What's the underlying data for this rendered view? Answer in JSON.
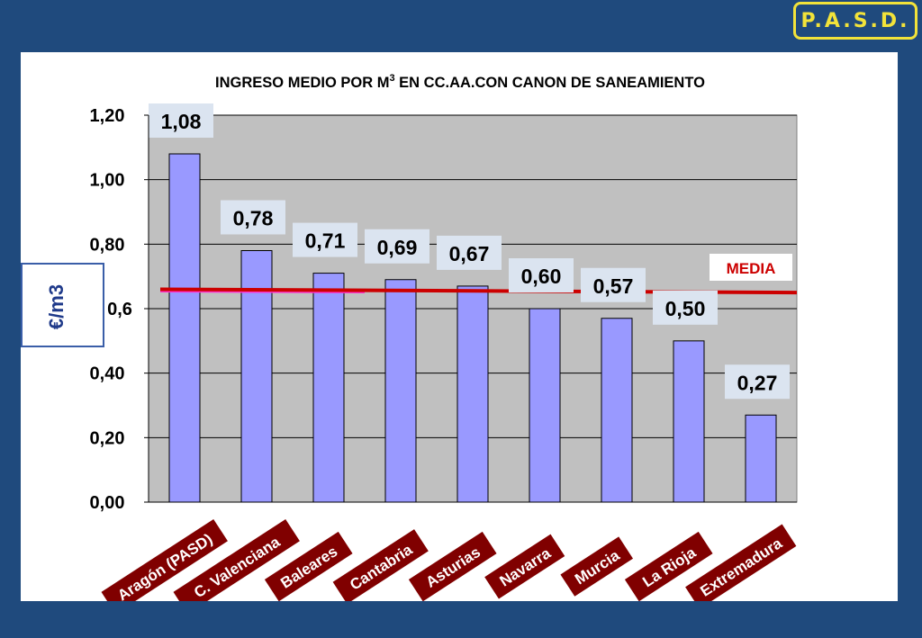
{
  "badge": "P.A.S.D.",
  "chart_data": {
    "type": "bar",
    "title": "INGRESO MEDIO POR M3 EN CC.AA.CON CANON DE SANEAMIENTO",
    "title_parts": {
      "pre": "INGRESO MEDIO POR M",
      "sup": "3",
      "post": " EN CC.AA.CON CANON DE SANEAMIENTO"
    },
    "ylabel": "€/m3",
    "xlabel": "",
    "categories": [
      "Aragón (PASD)",
      "C. Valenciana",
      "Baleares",
      "Cantabria",
      "Asturias",
      "Navarra",
      "Murcia",
      "La Rioja",
      "Extremadura"
    ],
    "values": [
      1.08,
      0.78,
      0.71,
      0.69,
      0.67,
      0.6,
      0.57,
      0.5,
      0.27
    ],
    "value_labels": [
      "1,08",
      "0,78",
      "0,71",
      "0,69",
      "0,67",
      "0,60",
      "0,57",
      "0,50",
      "0,27"
    ],
    "y_ticks": [
      0,
      0.2,
      0.4,
      0.6,
      0.8,
      1.0,
      1.2
    ],
    "y_tick_labels": [
      "0,00",
      "0,20",
      "0,40",
      "0,6",
      "0,80",
      "1,00",
      "1,20"
    ],
    "ylim": [
      0,
      1.2
    ],
    "grid": true,
    "reference_line": {
      "label": "MEDIA",
      "value_start": 0.66,
      "value_end": 0.65,
      "color": "#cc0000"
    },
    "colors": {
      "bar": "#9999ff",
      "plot_bg": "#c0c0c0",
      "label_bg": "#dbe4f0",
      "xlabel_bg": "#800000",
      "page_bg": "#1f4a7d",
      "badge": "#f2e33a"
    }
  }
}
